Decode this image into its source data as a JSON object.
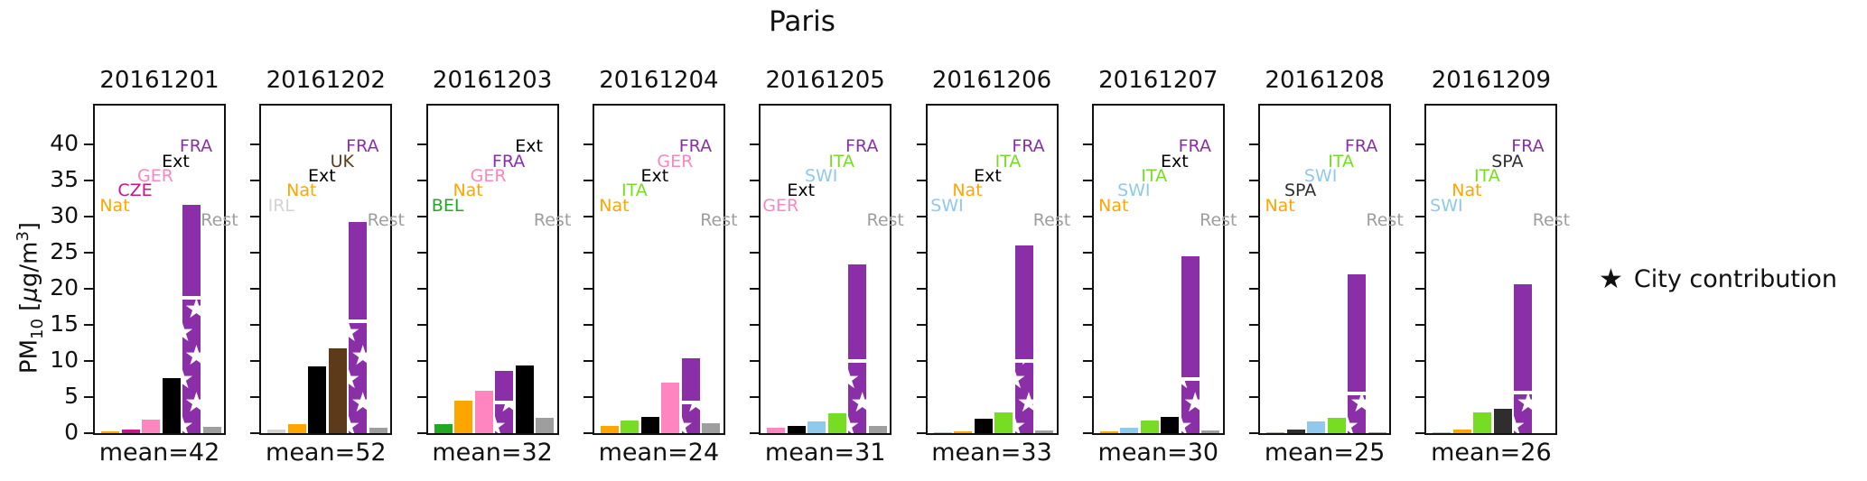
{
  "title": "Paris",
  "ylabel": {
    "p1": "PM",
    "sub": "10",
    "p2": " [",
    "mu": "μ",
    "p3": "g/m",
    "sup": "3",
    "p4": "]"
  },
  "legend": {
    "star_icon": "★",
    "label": "City contribution"
  },
  "chart_data": {
    "type": "bar",
    "title": "Paris",
    "ylabel": "PM10 [ug/m3]",
    "unit": "ug/m3",
    "ylim": [
      0,
      45.4
    ],
    "yticks": [
      0,
      5,
      10,
      15,
      20,
      25,
      30,
      35,
      40
    ],
    "grid": false,
    "legend_note": "star hatch on FRA bar = City contribution",
    "colors": {
      "Nat": "#FFA500",
      "CZE": "#C71585",
      "GER": "#FF85C0",
      "Ext": "#000000",
      "FRA": "#8B2FA8",
      "Rest": "#9E9E9E",
      "IRL": "#D3D3D3",
      "UK": "#5D3A1A",
      "BEL": "#22A822",
      "ITA": "#77DD22",
      "SWI": "#8FC9ED",
      "SPA": "#2E2E2E"
    },
    "panels": [
      {
        "date": "20161201",
        "mean": 42,
        "mean_label": "mean=42",
        "bars": [
          {
            "name": "Nat",
            "value": 0.3
          },
          {
            "name": "CZE",
            "value": 0.45
          },
          {
            "name": "GER",
            "value": 1.9
          },
          {
            "name": "Ext",
            "value": 7.6
          },
          {
            "name": "FRA",
            "value": 31.6,
            "city_contribution": 18.5
          },
          {
            "name": "Rest",
            "value": 0.85
          }
        ]
      },
      {
        "date": "20161202",
        "mean": 52,
        "mean_label": "mean=52",
        "bars": [
          {
            "name": "IRL",
            "value": 0.55
          },
          {
            "name": "Nat",
            "value": 1.2
          },
          {
            "name": "Ext",
            "value": 9.2
          },
          {
            "name": "UK",
            "value": 11.8
          },
          {
            "name": "FRA",
            "value": 29.2,
            "city_contribution": 15.3
          },
          {
            "name": "Rest",
            "value": 0.8
          }
        ]
      },
      {
        "date": "20161203",
        "mean": 32,
        "mean_label": "mean=32",
        "bars": [
          {
            "name": "BEL",
            "value": 1.2
          },
          {
            "name": "Nat",
            "value": 4.5
          },
          {
            "name": "GER",
            "value": 5.9
          },
          {
            "name": "FRA",
            "value": 8.6,
            "city_contribution": 4.0
          },
          {
            "name": "Ext",
            "value": 9.4
          },
          {
            "name": "Rest",
            "value": 2.1
          }
        ]
      },
      {
        "date": "20161204",
        "mean": 24,
        "mean_label": "mean=24",
        "bars": [
          {
            "name": "Nat",
            "value": 1.0
          },
          {
            "name": "ITA",
            "value": 1.75
          },
          {
            "name": "Ext",
            "value": 2.2
          },
          {
            "name": "GER",
            "value": 7.0
          },
          {
            "name": "FRA",
            "value": 10.4,
            "city_contribution": 4.0
          },
          {
            "name": "Rest",
            "value": 1.35
          }
        ]
      },
      {
        "date": "20161205",
        "mean": 31,
        "mean_label": "mean=31",
        "bars": [
          {
            "name": "GER",
            "value": 0.7
          },
          {
            "name": "Ext",
            "value": 1.0
          },
          {
            "name": "SWI",
            "value": 1.6
          },
          {
            "name": "ITA",
            "value": 2.8
          },
          {
            "name": "FRA",
            "value": 23.4,
            "city_contribution": 9.7
          },
          {
            "name": "Rest",
            "value": 1.0
          }
        ]
      },
      {
        "date": "20161206",
        "mean": 33,
        "mean_label": "mean=33",
        "bars": [
          {
            "name": "SWI",
            "value": 0.1
          },
          {
            "name": "Nat",
            "value": 0.25
          },
          {
            "name": "Ext",
            "value": 2.0
          },
          {
            "name": "ITA",
            "value": 2.85
          },
          {
            "name": "FRA",
            "value": 26.0,
            "city_contribution": 9.8
          },
          {
            "name": "Rest",
            "value": 0.4
          }
        ]
      },
      {
        "date": "20161207",
        "mean": 30,
        "mean_label": "mean=30",
        "bars": [
          {
            "name": "Nat",
            "value": 0.2
          },
          {
            "name": "SWI",
            "value": 0.7
          },
          {
            "name": "ITA",
            "value": 1.75
          },
          {
            "name": "Ext",
            "value": 2.2
          },
          {
            "name": "FRA",
            "value": 24.5,
            "city_contribution": 7.2
          },
          {
            "name": "Rest",
            "value": 0.35
          }
        ]
      },
      {
        "date": "20161208",
        "mean": 25,
        "mean_label": "mean=25",
        "bars": [
          {
            "name": "Nat",
            "value": 0.15
          },
          {
            "name": "SPA",
            "value": 0.5
          },
          {
            "name": "SWI",
            "value": 1.6
          },
          {
            "name": "ITA",
            "value": 2.1
          },
          {
            "name": "FRA",
            "value": 22.0,
            "city_contribution": 5.2
          },
          {
            "name": "Rest",
            "value": 0.15
          }
        ]
      },
      {
        "date": "20161209",
        "mean": 26,
        "mean_label": "mean=26",
        "bars": [
          {
            "name": "SWI",
            "value": 0.1
          },
          {
            "name": "Nat",
            "value": 0.45
          },
          {
            "name": "ITA",
            "value": 2.9
          },
          {
            "name": "SPA",
            "value": 3.4
          },
          {
            "name": "FRA",
            "value": 20.6,
            "city_contribution": 5.4
          },
          {
            "name": "Rest",
            "value": 0.05
          }
        ]
      }
    ]
  }
}
